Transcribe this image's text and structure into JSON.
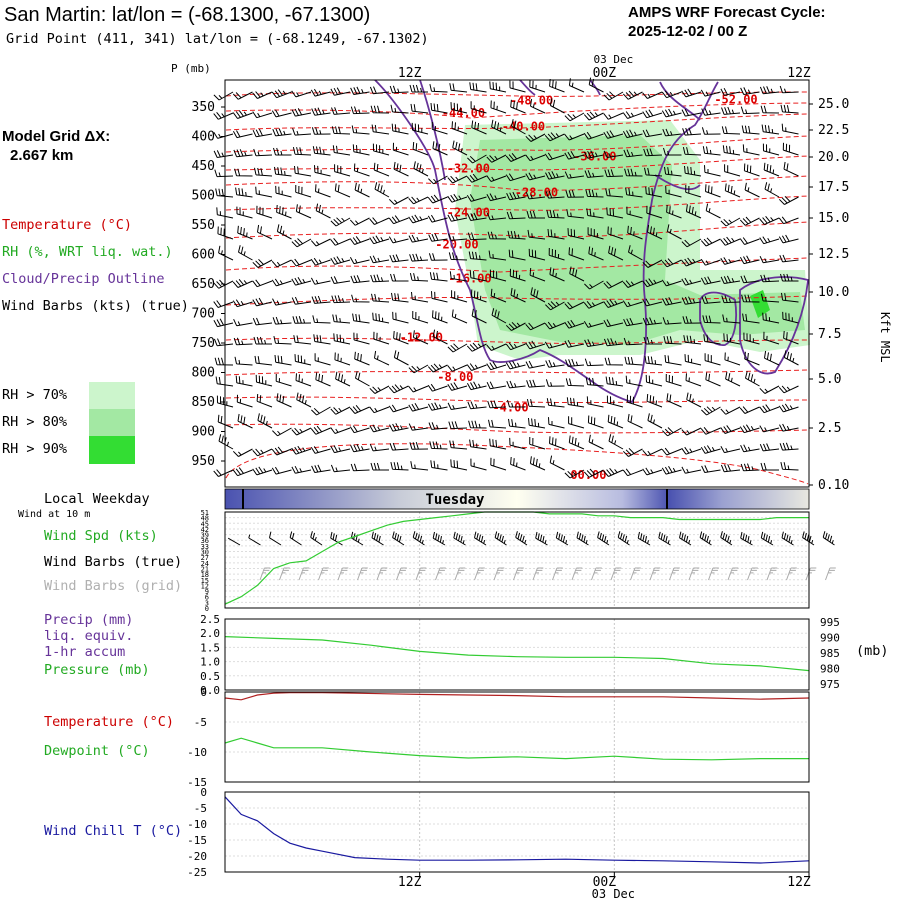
{
  "header": {
    "title": "San Martin:  lat/lon = (-68.1300, -67.1300)",
    "grid_point": "Grid Point (411, 341) lat/lon = (-68.1249, -67.1302)",
    "cycle_line1": "AMPS WRF Forecast Cycle:",
    "cycle_line2": "2025-12-02 / 00  Z"
  },
  "side": {
    "model_grid_line1": "Model Grid ΔX:",
    "model_grid_line2": "2.667 km",
    "legend_temperature": "Temperature (°C)",
    "legend_rh": "RH (%, WRT liq. wat.)",
    "legend_cloud": "Cloud/Precip Outline",
    "legend_wind": "Wind Barbs (kts) (true)",
    "rh_levels": [
      "RH > 70%",
      "RH > 80%",
      "RH > 90%"
    ],
    "local_weekday": "Local Weekday",
    "wind_at_10m": "Wind at 10 m",
    "wind_spd": "Wind Spd (kts)",
    "wind_barbs_true": "Wind Barbs (true)",
    "wind_barbs_grid": "Wind Barbs (grid)",
    "precip_line1": "Precip (mm)",
    "precip_line2": "liq. equiv.",
    "precip_line3": "1-hr accum",
    "pressure": "Pressure (mb)",
    "temperature": "Temperature (°C)",
    "dewpoint": "Dewpoint (°C)",
    "wind_chill": "Wind Chill T (°C)"
  },
  "colors": {
    "temperature_contour": "#e82020",
    "temperature_label": "#dd0000",
    "rh70": "#ccf5cc",
    "rh80": "#a3e8a3",
    "rh90": "#33dd33",
    "cloud_outline": "#663399",
    "legend_temperature": "#cc0000",
    "legend_rh": "#22aa22",
    "legend_cloud": "#663399",
    "wind_speed_line": "#33cc33",
    "grid_barbs": "#aaaaaa",
    "precip_text": "#663399",
    "pressure_line": "#33cc33",
    "temperature_line": "#b02020",
    "dewpoint_line": "#33cc33",
    "wind_chill_line": "#1a1aa0",
    "weekday_band_dark": "#4a52b0",
    "weekday_band_light": "#fffff0"
  },
  "time_axis": {
    "top_labels": [
      "12Z",
      "00Z",
      "12Z"
    ],
    "top_date": "03 Dec",
    "bottom_labels": [
      "12Z",
      "00Z",
      "12Z"
    ],
    "bottom_date": "03 Dec",
    "weekday": "Tuesday"
  },
  "chart_data": [
    {
      "type": "contour",
      "panel": "cross-section",
      "y_label": "P (mb)",
      "y_ticks": [
        "350",
        "400",
        "450",
        "500",
        "550",
        "600",
        "650",
        "700",
        "750",
        "800",
        "850",
        "900",
        "950"
      ],
      "y_range_mb": [
        1000,
        325
      ],
      "right_label": "Kft MSL",
      "right_ticks": [
        "25.0",
        "22.5",
        "20.0",
        "17.5",
        "15.0",
        "12.5",
        "10.0",
        "7.5",
        "5.0",
        "2.5",
        "0.10"
      ],
      "x_range_hours": [
        0,
        36
      ],
      "temperature_contours": [
        {
          "label": "-52.00",
          "t": 31.5,
          "p": 337
        },
        {
          "label": "-48.00",
          "t": 18.9,
          "p": 339
        },
        {
          "label": "-44.00",
          "t": 14.7,
          "p": 360
        },
        {
          "label": "-40.00",
          "t": 18.4,
          "p": 383
        },
        {
          "label": "-36.00",
          "t": 22.8,
          "p": 434
        },
        {
          "label": "-32.00",
          "t": 15.0,
          "p": 454
        },
        {
          "label": "-28.00",
          "t": 19.2,
          "p": 495
        },
        {
          "label": "-24.00",
          "t": 15.0,
          "p": 529
        },
        {
          "label": "-20.00",
          "t": 14.3,
          "p": 583
        },
        {
          "label": "-16.00",
          "t": 15.1,
          "p": 641
        },
        {
          "label": "-12.00",
          "t": 12.1,
          "p": 741
        },
        {
          "label": "-8.00",
          "t": 14.2,
          "p": 808
        },
        {
          "label": "-4.00",
          "t": 17.6,
          "p": 859
        },
        {
          "label": "00.00",
          "t": 22.4,
          "p": 974
        }
      ],
      "rh_thresholds": [
        "RH > 70%",
        "RH > 80%",
        "RH > 90%"
      ]
    },
    {
      "type": "line",
      "panel": "surface wind",
      "label": "Wind Spd (kts)",
      "y_ticks": [
        "51",
        "48",
        "45",
        "42",
        "39",
        "36",
        "33",
        "30",
        "27",
        "24",
        "21",
        "18",
        "15",
        "12",
        "9",
        "6",
        "3",
        "0"
      ],
      "y_range": [
        0,
        51
      ],
      "x_range_hours": [
        0,
        36
      ],
      "series": [
        {
          "name": "Wind Spd (kts)",
          "x": [
            0,
            1,
            2,
            3,
            4,
            5,
            6,
            7,
            8,
            9,
            10,
            11,
            12,
            13,
            14,
            15,
            16,
            17,
            18,
            19,
            20,
            21,
            22,
            23,
            24,
            25,
            26,
            27,
            28,
            29,
            30,
            31,
            32,
            33,
            34,
            35,
            36
          ],
          "y": [
            2,
            6,
            12,
            21,
            24,
            25,
            30,
            35,
            38,
            41,
            44,
            46,
            47,
            48,
            49,
            50,
            51,
            51,
            51,
            51,
            50,
            50,
            50,
            49,
            49,
            48,
            48,
            48,
            47,
            47,
            47,
            47,
            47,
            47,
            48,
            48,
            48
          ]
        }
      ]
    },
    {
      "type": "line",
      "panel": "precip and pressure",
      "left_label": "Precip (mm)",
      "left_ticks": [
        "2.5",
        "2.0",
        "1.5",
        "1.0",
        "0.5",
        "0.0"
      ],
      "left_range": [
        0,
        2.5
      ],
      "right_label": "(mb)",
      "right_ticks": [
        "995",
        "990",
        "985",
        "980",
        "975"
      ],
      "right_range": [
        973,
        996
      ],
      "x_range_hours": [
        0,
        36
      ],
      "series": [
        {
          "name": "Pressure (mb)",
          "x": [
            0,
            3,
            6,
            9,
            12,
            15,
            18,
            21,
            24,
            27,
            30,
            33,
            36
          ],
          "y": [
            990.3,
            989.7,
            989.2,
            987.5,
            985.5,
            984.3,
            983.8,
            983.6,
            983.6,
            983.2,
            981.5,
            980.8,
            979.3
          ]
        }
      ]
    },
    {
      "type": "line",
      "panel": "temperature and dewpoint",
      "y_ticks": [
        "0",
        "-5",
        "-10",
        "-15"
      ],
      "y_range": [
        -15,
        0
      ],
      "x_range_hours": [
        0,
        36
      ],
      "series": [
        {
          "name": "Temperature (°C)",
          "x": [
            0,
            1,
            2,
            3,
            4,
            6,
            8,
            10,
            12,
            15,
            18,
            21,
            24,
            27,
            30,
            33,
            36
          ],
          "y": [
            -1.0,
            -1.3,
            -0.5,
            -0.2,
            -0.1,
            -0.1,
            -0.2,
            -0.3,
            -0.4,
            -0.5,
            -0.6,
            -0.8,
            -0.8,
            -0.8,
            -1.0,
            -1.2,
            -1.0
          ]
        },
        {
          "name": "Dewpoint (°C)",
          "x": [
            0,
            1,
            2,
            3,
            6,
            9,
            12,
            15,
            18,
            21,
            24,
            27,
            30,
            33,
            36
          ],
          "y": [
            -8.5,
            -7.7,
            -8.5,
            -9.3,
            -9.3,
            -10.0,
            -10.6,
            -11.0,
            -10.8,
            -11.1,
            -10.7,
            -11.2,
            -11.3,
            -11.1,
            -11.1
          ]
        }
      ]
    },
    {
      "type": "line",
      "panel": "wind chill",
      "y_ticks": [
        "0",
        "-5",
        "-10",
        "-15",
        "-20",
        "-25"
      ],
      "y_range": [
        -25,
        0
      ],
      "x_range_hours": [
        0,
        36
      ],
      "series": [
        {
          "name": "Wind Chill T (°C)",
          "x": [
            0,
            1,
            2,
            3,
            4,
            5,
            6,
            8,
            10,
            12,
            15,
            18,
            21,
            24,
            27,
            30,
            33,
            36
          ],
          "y": [
            -1.5,
            -7.0,
            -9.0,
            -13.0,
            -16.0,
            -17.5,
            -18.5,
            -20.5,
            -21.0,
            -21.3,
            -21.3,
            -21.2,
            -21.0,
            -21.3,
            -21.5,
            -21.8,
            -22.2,
            -21.5
          ]
        }
      ]
    }
  ]
}
